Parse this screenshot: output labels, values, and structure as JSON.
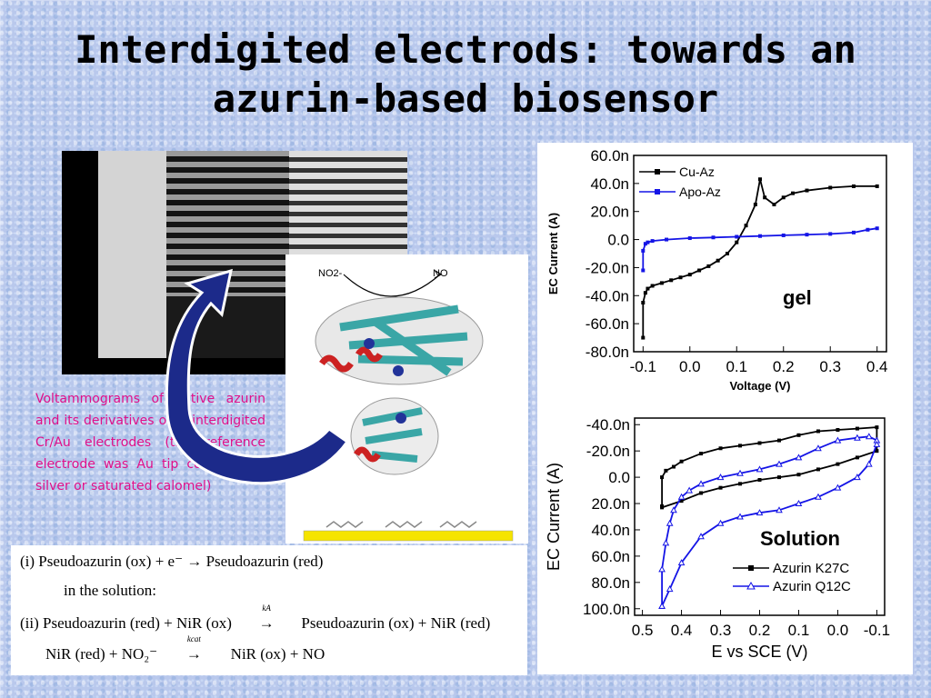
{
  "title_line1": "Interdigited electrods: towards an",
  "title_line2": "azurin-based biosensor",
  "caption": "Voltammograms of native azurin and its derivatives onto interdigited Cr/Au electrodes (the reference electrode was Au tip coated with silver or saturated calomel)",
  "protein_figure": {
    "left_label": "NO2-",
    "right_label": "NO"
  },
  "reactions": {
    "line1": "(i) Pseudoazurin (ox) + e⁻ → Pseudoazurin (red)",
    "line2": "in the solution:",
    "line3a": "(ii) Pseudoazurin (red) + NiR (ox)",
    "line3_k": "kA",
    "line3b": "Pseudoazurin (ox) + NiR (red)",
    "line4a": "NiR (red) + NO₂⁻",
    "line4_k": "kcat",
    "line4b": "NiR (ox) + NO"
  },
  "colors": {
    "title": "#000000",
    "caption": "#e0108a",
    "arrow": "#1c2a8a",
    "black_series": "#000000",
    "blue_series": "#1414e6",
    "gold_bar": "#f5e400"
  },
  "chart_data": [
    {
      "type": "line",
      "annotation": "gel",
      "xlabel": "Voltage (V)",
      "ylabel": "EC Current (A)",
      "xlim": [
        -0.12,
        0.42
      ],
      "ylim": [
        -80,
        60
      ],
      "xticks": [
        "-0.1",
        "0.0",
        "0.1",
        "0.2",
        "0.3",
        "0.4"
      ],
      "xtick_values": [
        -0.1,
        0.0,
        0.1,
        0.2,
        0.3,
        0.4
      ],
      "yticks": [
        "60.0n",
        "40.0n",
        "20.0n",
        "0.0",
        "-20.0n",
        "-40.0n",
        "-60.0n",
        "-80.0n"
      ],
      "ytick_values": [
        60,
        40,
        20,
        0,
        -20,
        -40,
        -60,
        -80
      ],
      "legend_position": "top-left",
      "series": [
        {
          "name": "Cu-Az",
          "color": "#000000",
          "marker": "square",
          "x": [
            -0.1,
            -0.1,
            -0.095,
            -0.09,
            -0.08,
            -0.06,
            -0.04,
            -0.02,
            0.0,
            0.02,
            0.04,
            0.06,
            0.08,
            0.1,
            0.12,
            0.14,
            0.15,
            0.16,
            0.18,
            0.2,
            0.22,
            0.25,
            0.3,
            0.35,
            0.4
          ],
          "y": [
            -70,
            -45,
            -38,
            -35,
            -33,
            -31,
            -29,
            -27,
            -25,
            -22,
            -19,
            -15,
            -10,
            -2,
            10,
            25,
            43,
            30,
            25,
            30,
            33,
            35,
            37,
            38,
            38
          ]
        },
        {
          "name": "Apo-Az",
          "color": "#1414e6",
          "marker": "square",
          "x": [
            -0.1,
            -0.1,
            -0.095,
            -0.09,
            -0.08,
            -0.05,
            0.0,
            0.05,
            0.1,
            0.15,
            0.2,
            0.25,
            0.3,
            0.35,
            0.38,
            0.4
          ],
          "y": [
            -22,
            -8,
            -3,
            -2,
            -1,
            0,
            1,
            1.5,
            2,
            2.5,
            3,
            3.5,
            4,
            5,
            7,
            8
          ]
        }
      ]
    },
    {
      "type": "line",
      "annotation": "Solution",
      "xlabel": "E vs SCE (V)",
      "ylabel": "EC Current (A)",
      "xlim": [
        0.52,
        -0.12
      ],
      "ylim": [
        -45,
        105
      ],
      "xticks": [
        "0.5",
        "0.4",
        "0.3",
        "0.2",
        "0.1",
        "0.0",
        "-0.1"
      ],
      "xtick_values": [
        0.5,
        0.4,
        0.3,
        0.2,
        0.1,
        0.0,
        -0.1
      ],
      "yticks": [
        "-40.0n",
        "-20.0n",
        "0.0",
        "20.0n",
        "40.0n",
        "60.0n",
        "80.0n",
        "100.0n"
      ],
      "ytick_values": [
        -40,
        -20,
        0,
        20,
        40,
        60,
        80,
        100
      ],
      "legend_position": "bottom-right",
      "series": [
        {
          "name": "Azurin K27C",
          "color": "#000000",
          "marker": "square",
          "x": [
            0.45,
            0.45,
            0.44,
            0.42,
            0.4,
            0.35,
            0.3,
            0.25,
            0.2,
            0.15,
            0.1,
            0.05,
            0.0,
            -0.05,
            -0.1,
            -0.1,
            -0.05,
            0.0,
            0.05,
            0.1,
            0.15,
            0.2,
            0.25,
            0.3,
            0.35,
            0.4,
            0.45
          ],
          "y": [
            22,
            0,
            -5,
            -8,
            -12,
            -18,
            -22,
            -24,
            -26,
            -28,
            -32,
            -35,
            -36,
            -37,
            -38,
            -20,
            -15,
            -10,
            -6,
            -2,
            0,
            2,
            5,
            8,
            12,
            18,
            23
          ]
        },
        {
          "name": "Azurin Q12C",
          "color": "#1414e6",
          "marker": "triangle",
          "x": [
            0.45,
            0.45,
            0.44,
            0.43,
            0.42,
            0.4,
            0.38,
            0.35,
            0.3,
            0.25,
            0.2,
            0.15,
            0.1,
            0.05,
            0.0,
            -0.05,
            -0.08,
            -0.1,
            -0.1,
            -0.08,
            -0.05,
            0.0,
            0.05,
            0.1,
            0.15,
            0.2,
            0.25,
            0.3,
            0.35,
            0.4,
            0.43,
            0.45
          ],
          "y": [
            98,
            70,
            50,
            35,
            25,
            15,
            10,
            5,
            0,
            -3,
            -6,
            -10,
            -15,
            -22,
            -28,
            -30,
            -31,
            -28,
            -25,
            -10,
            0,
            8,
            15,
            20,
            25,
            27,
            30,
            35,
            45,
            65,
            85,
            98
          ]
        }
      ]
    }
  ]
}
